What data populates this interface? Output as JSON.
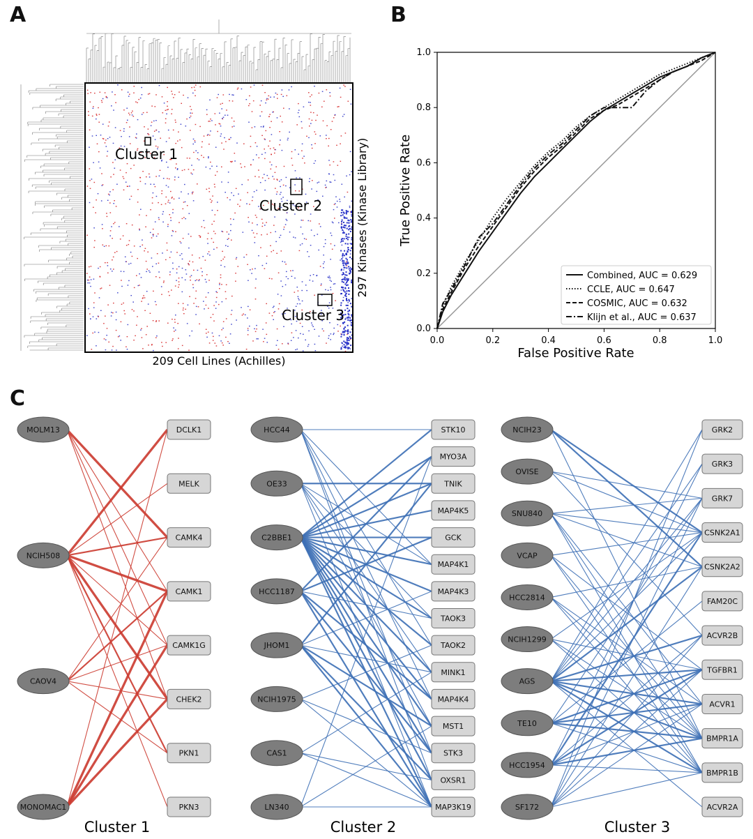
{
  "panels": {
    "a": "A",
    "b": "B",
    "c": "C"
  },
  "panel_a": {
    "xlabel": "209 Cell Lines (Achilles)",
    "ylabel": "297 Kinases (Kinase Library)",
    "clusters": [
      "Cluster 1",
      "Cluster 2",
      "Cluster 3"
    ],
    "colors": {
      "positive": "#d62728",
      "negative": "#2a33c8",
      "border": "#000000"
    }
  },
  "chart_data": {
    "type": "line",
    "xlabel": "False Positive Rate",
    "ylabel": "True Positive Rate",
    "xlim": [
      0.0,
      1.0
    ],
    "ylim": [
      0.0,
      1.0
    ],
    "xticks": [
      "0.0",
      "0.2",
      "0.4",
      "0.6",
      "0.8",
      "1.0"
    ],
    "yticks": [
      "0.0",
      "0.2",
      "0.4",
      "0.6",
      "0.8",
      "1.0"
    ],
    "grid": false,
    "legend_position": "bottom-right",
    "series": [
      {
        "name": "Combined, AUC = 0.629",
        "style": "solid",
        "points": [
          [
            0,
            0
          ],
          [
            0.02,
            0.06
          ],
          [
            0.05,
            0.12
          ],
          [
            0.1,
            0.2
          ],
          [
            0.15,
            0.28
          ],
          [
            0.2,
            0.35
          ],
          [
            0.25,
            0.42
          ],
          [
            0.3,
            0.49
          ],
          [
            0.35,
            0.55
          ],
          [
            0.4,
            0.6
          ],
          [
            0.45,
            0.65
          ],
          [
            0.5,
            0.7
          ],
          [
            0.55,
            0.75
          ],
          [
            0.6,
            0.79
          ],
          [
            0.65,
            0.82
          ],
          [
            0.7,
            0.85
          ],
          [
            0.75,
            0.88
          ],
          [
            0.8,
            0.91
          ],
          [
            0.85,
            0.93
          ],
          [
            0.9,
            0.95
          ],
          [
            0.95,
            0.98
          ],
          [
            1,
            1
          ]
        ]
      },
      {
        "name": "CCLE, AUC = 0.647",
        "style": "dotted",
        "points": [
          [
            0,
            0
          ],
          [
            0.02,
            0.08
          ],
          [
            0.05,
            0.15
          ],
          [
            0.1,
            0.24
          ],
          [
            0.15,
            0.32
          ],
          [
            0.2,
            0.4
          ],
          [
            0.25,
            0.47
          ],
          [
            0.3,
            0.53
          ],
          [
            0.35,
            0.59
          ],
          [
            0.4,
            0.64
          ],
          [
            0.45,
            0.68
          ],
          [
            0.5,
            0.73
          ],
          [
            0.55,
            0.77
          ],
          [
            0.6,
            0.8
          ],
          [
            0.65,
            0.83
          ],
          [
            0.7,
            0.86
          ],
          [
            0.75,
            0.89
          ],
          [
            0.8,
            0.92
          ],
          [
            0.85,
            0.94
          ],
          [
            0.9,
            0.96
          ],
          [
            0.95,
            0.98
          ],
          [
            1,
            1
          ]
        ]
      },
      {
        "name": "COSMIC, AUC = 0.632",
        "style": "dashed",
        "points": [
          [
            0,
            0
          ],
          [
            0.02,
            0.07
          ],
          [
            0.05,
            0.13
          ],
          [
            0.1,
            0.22
          ],
          [
            0.15,
            0.3
          ],
          [
            0.2,
            0.37
          ],
          [
            0.25,
            0.44
          ],
          [
            0.3,
            0.51
          ],
          [
            0.35,
            0.57
          ],
          [
            0.4,
            0.62
          ],
          [
            0.45,
            0.66
          ],
          [
            0.5,
            0.71
          ],
          [
            0.55,
            0.76
          ],
          [
            0.6,
            0.79
          ],
          [
            0.65,
            0.81
          ],
          [
            0.7,
            0.84
          ],
          [
            0.75,
            0.87
          ],
          [
            0.8,
            0.9
          ],
          [
            0.85,
            0.93
          ],
          [
            0.9,
            0.95
          ],
          [
            0.95,
            0.97
          ],
          [
            1,
            1
          ]
        ]
      },
      {
        "name": "Klijn et al., AUC = 0.637",
        "style": "dashdot",
        "points": [
          [
            0,
            0
          ],
          [
            0.02,
            0.09
          ],
          [
            0.05,
            0.14
          ],
          [
            0.1,
            0.23
          ],
          [
            0.15,
            0.33
          ],
          [
            0.2,
            0.38
          ],
          [
            0.25,
            0.45
          ],
          [
            0.3,
            0.52
          ],
          [
            0.35,
            0.58
          ],
          [
            0.4,
            0.63
          ],
          [
            0.45,
            0.67
          ],
          [
            0.5,
            0.72
          ],
          [
            0.55,
            0.77
          ],
          [
            0.6,
            0.8
          ],
          [
            0.65,
            0.8
          ],
          [
            0.7,
            0.8
          ],
          [
            0.75,
            0.86
          ],
          [
            0.8,
            0.9
          ],
          [
            0.85,
            0.93
          ],
          [
            0.9,
            0.95
          ],
          [
            0.95,
            0.98
          ],
          [
            1,
            1
          ]
        ]
      }
    ]
  },
  "panel_c": {
    "clusters": [
      {
        "label": "Cluster 1",
        "color": "#cc3a2f",
        "cell_lines": [
          "MOLM13",
          "NCIH508",
          "CAOV4",
          "MONOMAC1"
        ],
        "kinases": [
          "DCLK1",
          "MELK",
          "CAMK4",
          "CAMK1",
          "CAMK1G",
          "CHEK2",
          "PKN1",
          "PKN3"
        ],
        "edges": [
          [
            0,
            2,
            3
          ],
          [
            0,
            3,
            1
          ],
          [
            0,
            5,
            1
          ],
          [
            0,
            4,
            1
          ],
          [
            1,
            0,
            3
          ],
          [
            1,
            1,
            1
          ],
          [
            1,
            2,
            2
          ],
          [
            1,
            3,
            3
          ],
          [
            1,
            4,
            1
          ],
          [
            1,
            5,
            3
          ],
          [
            1,
            6,
            2
          ],
          [
            1,
            7,
            1
          ],
          [
            2,
            2,
            1
          ],
          [
            2,
            3,
            2
          ],
          [
            2,
            4,
            1
          ],
          [
            2,
            5,
            1
          ],
          [
            2,
            6,
            1
          ],
          [
            3,
            3,
            3
          ],
          [
            3,
            4,
            3
          ],
          [
            3,
            5,
            3
          ],
          [
            3,
            0,
            1
          ]
        ]
      },
      {
        "label": "Cluster 2",
        "color": "#3d6fb5",
        "cell_lines": [
          "HCC44",
          "OE33",
          "C2BBE1",
          "HCC1187",
          "JHOM1",
          "NCIH1975",
          "CAS1",
          "LN340"
        ],
        "kinases": [
          "STK10",
          "MYO3A",
          "TNIK",
          "MAP4K5",
          "GCK",
          "MAP4K1",
          "MAP4K3",
          "TAOK3",
          "TAOK2",
          "MINK1",
          "MAP4K4",
          "MST1",
          "STK3",
          "OXSR1",
          "MAP3K19"
        ],
        "edges": [
          [
            0,
            0,
            1
          ],
          [
            0,
            5,
            1
          ],
          [
            0,
            8,
            1
          ],
          [
            0,
            10,
            1
          ],
          [
            0,
            12,
            1
          ],
          [
            0,
            13,
            1
          ],
          [
            1,
            2,
            2
          ],
          [
            1,
            5,
            1
          ],
          [
            1,
            7,
            1
          ],
          [
            1,
            9,
            1
          ],
          [
            1,
            11,
            1
          ],
          [
            1,
            14,
            1
          ],
          [
            2,
            0,
            2
          ],
          [
            2,
            1,
            2
          ],
          [
            2,
            2,
            2
          ],
          [
            2,
            3,
            2
          ],
          [
            2,
            4,
            2
          ],
          [
            2,
            5,
            2
          ],
          [
            2,
            6,
            2
          ],
          [
            2,
            7,
            2
          ],
          [
            2,
            8,
            2
          ],
          [
            2,
            9,
            2
          ],
          [
            2,
            10,
            2
          ],
          [
            2,
            11,
            2
          ],
          [
            2,
            12,
            2
          ],
          [
            2,
            13,
            2
          ],
          [
            2,
            14,
            2
          ],
          [
            3,
            1,
            2
          ],
          [
            3,
            4,
            2
          ],
          [
            3,
            7,
            1
          ],
          [
            3,
            10,
            2
          ],
          [
            3,
            12,
            2
          ],
          [
            3,
            14,
            2
          ],
          [
            4,
            2,
            2
          ],
          [
            4,
            6,
            1
          ],
          [
            4,
            9,
            1
          ],
          [
            4,
            11,
            2
          ],
          [
            4,
            13,
            2
          ],
          [
            4,
            14,
            2
          ],
          [
            5,
            8,
            1
          ],
          [
            5,
            12,
            1
          ],
          [
            5,
            14,
            1
          ],
          [
            6,
            9,
            1
          ],
          [
            6,
            13,
            1
          ],
          [
            6,
            14,
            1
          ],
          [
            7,
            1,
            1
          ],
          [
            7,
            11,
            1
          ],
          [
            7,
            14,
            1
          ]
        ]
      },
      {
        "label": "Cluster 3",
        "color": "#3d6fb5",
        "cell_lines": [
          "NCIH23",
          "OVISE",
          "SNU840",
          "VCAP",
          "HCC2814",
          "NCIH1299",
          "AGS",
          "TE10",
          "HCC1954",
          "SF172"
        ],
        "kinases": [
          "GRK2",
          "GRK3",
          "GRK7",
          "CSNK2A1",
          "CSNK2A2",
          "FAM20C",
          "ACVR2B",
          "TGFBR1",
          "ACVR1",
          "BMPR1A",
          "BMPR1B",
          "ACVR2A"
        ],
        "edges": [
          [
            0,
            3,
            2
          ],
          [
            0,
            4,
            2
          ],
          [
            0,
            9,
            1
          ],
          [
            1,
            2,
            1
          ],
          [
            1,
            3,
            1
          ],
          [
            1,
            6,
            1
          ],
          [
            2,
            2,
            1
          ],
          [
            2,
            3,
            1
          ],
          [
            2,
            4,
            1
          ],
          [
            2,
            8,
            1
          ],
          [
            2,
            9,
            1
          ],
          [
            2,
            10,
            1
          ],
          [
            3,
            3,
            1
          ],
          [
            3,
            7,
            1
          ],
          [
            3,
            9,
            1
          ],
          [
            3,
            10,
            1
          ],
          [
            4,
            4,
            1
          ],
          [
            4,
            8,
            1
          ],
          [
            4,
            9,
            1
          ],
          [
            4,
            10,
            1
          ],
          [
            5,
            3,
            1
          ],
          [
            5,
            7,
            1
          ],
          [
            5,
            9,
            1
          ],
          [
            5,
            10,
            1
          ],
          [
            6,
            0,
            1
          ],
          [
            6,
            1,
            1
          ],
          [
            6,
            2,
            1
          ],
          [
            6,
            3,
            1
          ],
          [
            6,
            4,
            2
          ],
          [
            6,
            6,
            2
          ],
          [
            6,
            7,
            2
          ],
          [
            6,
            8,
            2
          ],
          [
            6,
            9,
            2
          ],
          [
            6,
            10,
            2
          ],
          [
            6,
            11,
            1
          ],
          [
            7,
            2,
            1
          ],
          [
            7,
            5,
            1
          ],
          [
            7,
            7,
            2
          ],
          [
            7,
            8,
            2
          ],
          [
            7,
            9,
            2
          ],
          [
            7,
            10,
            1
          ],
          [
            8,
            1,
            1
          ],
          [
            8,
            3,
            2
          ],
          [
            8,
            6,
            1
          ],
          [
            8,
            7,
            2
          ],
          [
            8,
            8,
            1
          ],
          [
            8,
            9,
            2
          ],
          [
            8,
            10,
            1
          ],
          [
            9,
            0,
            1
          ],
          [
            9,
            2,
            1
          ],
          [
            9,
            4,
            1
          ],
          [
            9,
            6,
            1
          ],
          [
            9,
            7,
            1
          ],
          [
            9,
            8,
            1
          ],
          [
            9,
            10,
            1
          ]
        ]
      }
    ]
  }
}
